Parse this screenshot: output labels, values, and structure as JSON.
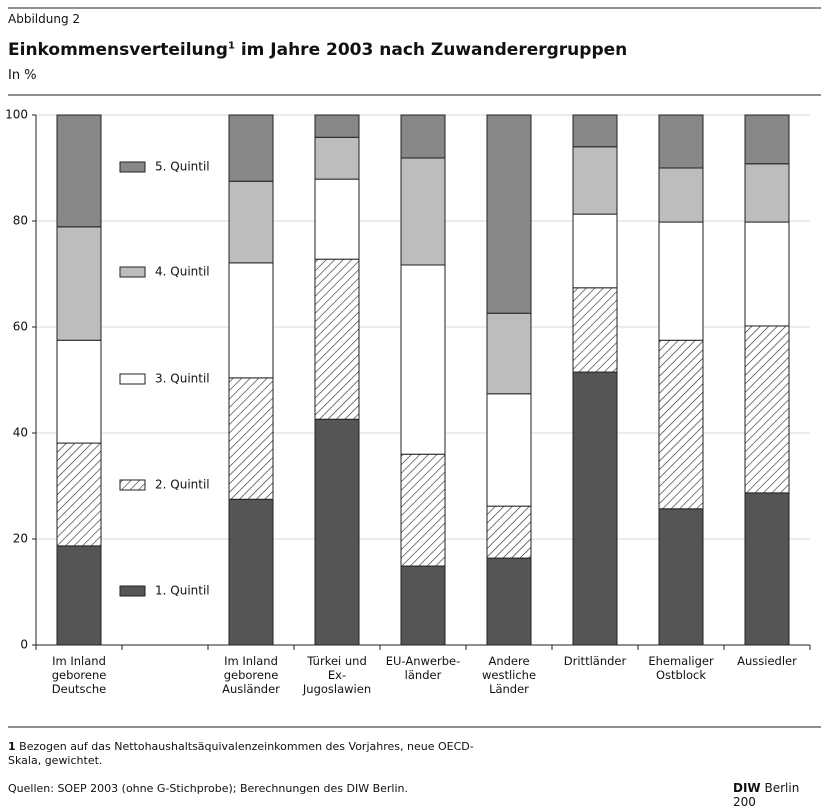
{
  "chart_data": {
    "type": "stacked_bar",
    "figure_label": "Abbildung 2",
    "title": "Einkommensverteilung",
    "title_superscript": "1",
    "title_continued": " im Jahre 2003 nach Zuwanderergruppen",
    "subtitle": "In %",
    "categories": [
      "Im Inland\ngeborene\nDeutsche",
      null,
      "Im Inland\ngeborene\nAusländer",
      "Türkei und\nEx-Jugoslawien",
      "EU-Anwerbe-\nländer",
      "Andere\nwestliche\nLänder",
      "Drittländer",
      "Ehemaliger\nOstblock",
      "Aussiedler"
    ],
    "series": [
      {
        "name": "1. Quintil",
        "color": "#555555",
        "values": [
          18.7,
          null,
          27.5,
          42.6,
          14.9,
          16.4,
          51.5,
          25.7,
          28.7
        ]
      },
      {
        "name": "2. Quintil",
        "color": "#ffffff",
        "pattern": "hatch",
        "values": [
          19.4,
          null,
          22.9,
          30.2,
          21.1,
          9.8,
          15.9,
          31.8,
          31.5
        ]
      },
      {
        "name": "3. Quintil",
        "color": "#ffffff",
        "values": [
          19.4,
          null,
          21.7,
          15.1,
          35.7,
          21.2,
          13.9,
          22.3,
          19.6
        ]
      },
      {
        "name": "4. Quintil",
        "color": "#bdbdbd",
        "values": [
          21.4,
          null,
          15.4,
          7.9,
          20.2,
          15.2,
          12.7,
          10.2,
          11.0
        ]
      },
      {
        "name": "5. Quintil",
        "color": "#888888",
        "values": [
          21.1,
          null,
          12.5,
          4.2,
          8.1,
          37.4,
          6.0,
          10.0,
          9.2
        ]
      }
    ],
    "ylim": [
      0,
      100
    ],
    "yticks": [
      0,
      20,
      40,
      60,
      80,
      100
    ],
    "grid": true,
    "footnote_mark": "1",
    "footnote": " Bezogen auf das Nettohaushaltsäquivalenzeinkommen des Vorjahres, neue OECD-\nSkala, gewichtet.",
    "source": "Quellen: SOEP 2003 (ohne G-Stichprobe); Berechnungen des DIW Berlin.",
    "brand_bold": "DIW",
    "brand": " Berlin 200"
  }
}
